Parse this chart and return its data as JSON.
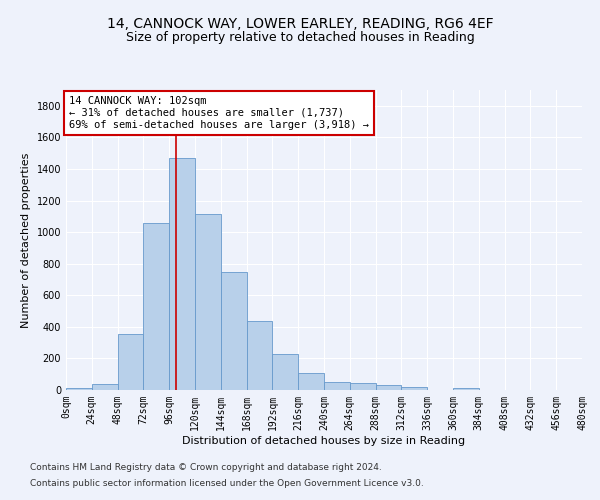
{
  "title_line1": "14, CANNOCK WAY, LOWER EARLEY, READING, RG6 4EF",
  "title_line2": "Size of property relative to detached houses in Reading",
  "xlabel": "Distribution of detached houses by size in Reading",
  "ylabel": "Number of detached properties",
  "bar_color": "#b8d0ea",
  "bar_edge_color": "#6699cc",
  "bin_edges": [
    0,
    24,
    48,
    72,
    96,
    120,
    144,
    168,
    192,
    216,
    240,
    264,
    288,
    312,
    336,
    360,
    384,
    408,
    432,
    456,
    480
  ],
  "bar_heights": [
    10,
    35,
    355,
    1060,
    1470,
    1115,
    748,
    435,
    225,
    110,
    52,
    45,
    32,
    22,
    0,
    10,
    2,
    0,
    0,
    0
  ],
  "tick_labels": [
    "0sqm",
    "24sqm",
    "48sqm",
    "72sqm",
    "96sqm",
    "120sqm",
    "144sqm",
    "168sqm",
    "192sqm",
    "216sqm",
    "240sqm",
    "264sqm",
    "288sqm",
    "312sqm",
    "336sqm",
    "360sqm",
    "384sqm",
    "408sqm",
    "432sqm",
    "456sqm",
    "480sqm"
  ],
  "property_size": 102,
  "annotation_text": "14 CANNOCK WAY: 102sqm\n← 31% of detached houses are smaller (1,737)\n69% of semi-detached houses are larger (3,918) →",
  "annotation_box_color": "#ffffff",
  "annotation_box_edge_color": "#cc0000",
  "vline_color": "#cc0000",
  "ylim": [
    0,
    1900
  ],
  "yticks": [
    0,
    200,
    400,
    600,
    800,
    1000,
    1200,
    1400,
    1600,
    1800
  ],
  "footer_line1": "Contains HM Land Registry data © Crown copyright and database right 2024.",
  "footer_line2": "Contains public sector information licensed under the Open Government Licence v3.0.",
  "bg_color": "#eef2fb",
  "grid_color": "#ffffff",
  "title_fontsize": 10,
  "subtitle_fontsize": 9,
  "axis_label_fontsize": 8,
  "tick_fontsize": 7,
  "annotation_fontsize": 7.5,
  "footer_fontsize": 6.5
}
